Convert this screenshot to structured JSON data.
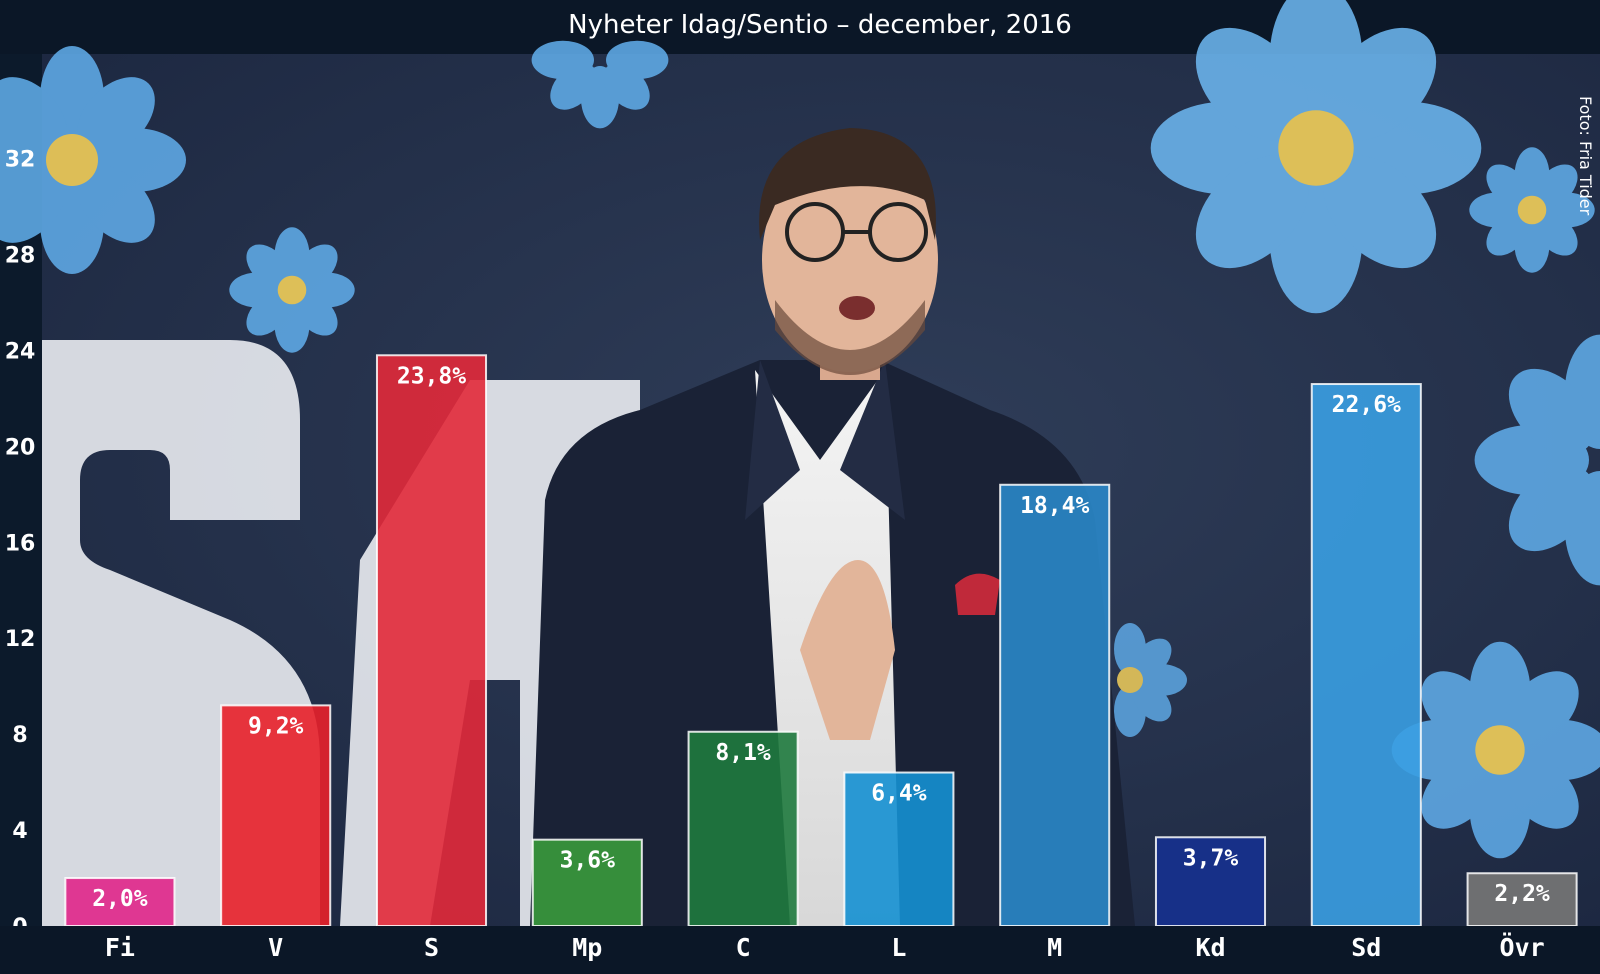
{
  "chart_data": {
    "type": "bar",
    "title": "Nyheter Idag/Sentio – december, 2016",
    "xlabel": "",
    "ylabel": "",
    "ylim": [
      0,
      36
    ],
    "yticks": [
      0,
      4,
      8,
      12,
      16,
      20,
      24,
      28,
      32
    ],
    "grid": false,
    "legend": "none",
    "categories": [
      "Fi",
      "V",
      "S",
      "Mp",
      "C",
      "L",
      "M",
      "Kd",
      "Sd",
      "Övr"
    ],
    "values": [
      2.0,
      9.2,
      23.8,
      3.6,
      8.1,
      6.4,
      18.4,
      3.7,
      22.6,
      2.2
    ],
    "labels": [
      "2,0%",
      "9,2%",
      "23,8%",
      "3,6%",
      "8,1%",
      "6,4%",
      "18,4%",
      "3,7%",
      "22,6%",
      "2,2%"
    ],
    "colors": [
      "#e0258a",
      "#e8202a",
      "#e2293a",
      "#3a9a3c",
      "#1f7a3e",
      "#1590d2",
      "#2a87c8",
      "#16318f",
      "#3a9ee2",
      "#777777"
    ]
  },
  "photo_credit": "Foto: Fria Tider"
}
